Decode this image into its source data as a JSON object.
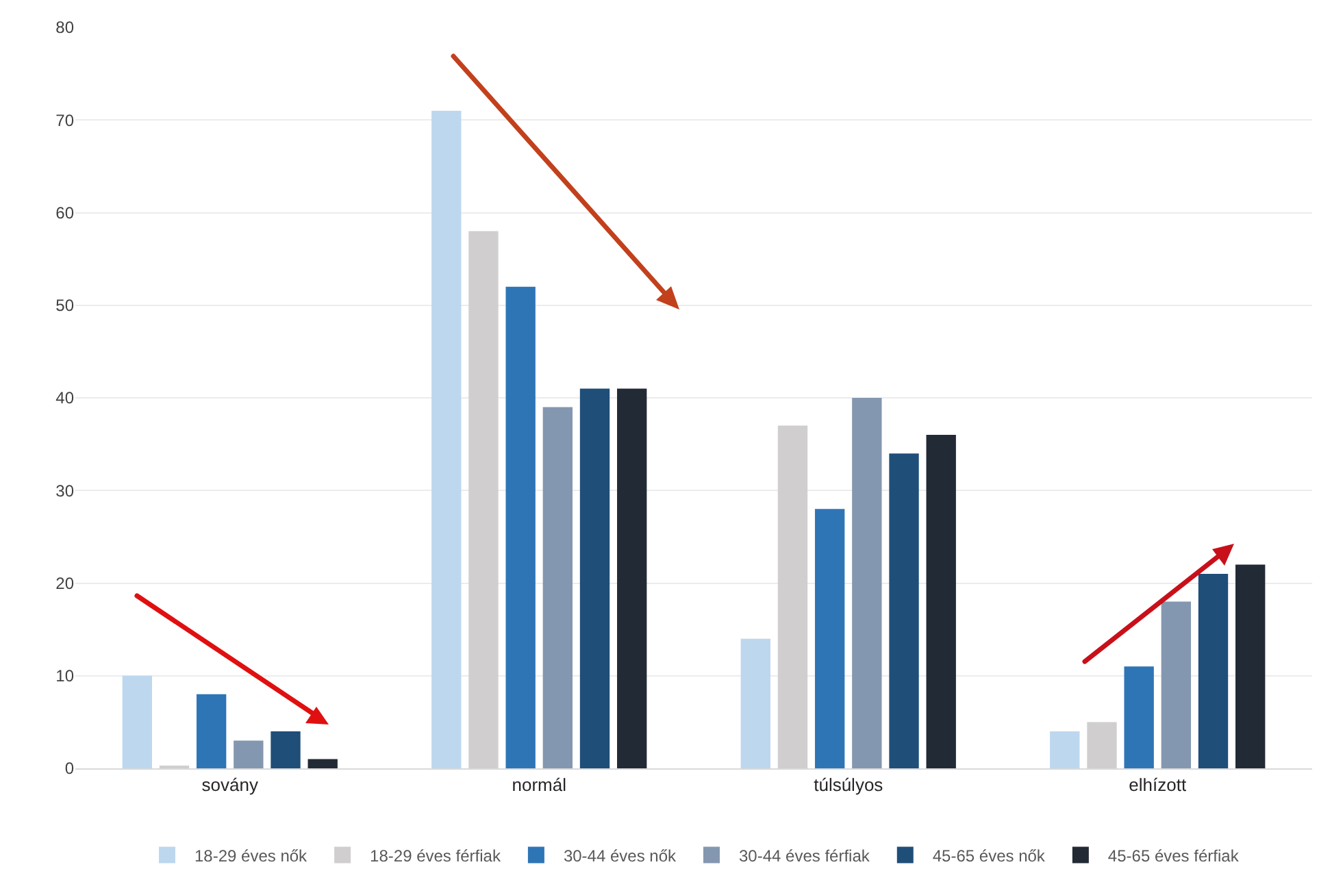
{
  "chart_data": {
    "type": "bar",
    "categories": [
      "sovány",
      "normál",
      "túlsúlyos",
      "elhízott"
    ],
    "series": [
      {
        "name": "18-29 éves nők",
        "color": "#bdd7ee",
        "values": [
          10,
          71,
          14,
          4
        ]
      },
      {
        "name": "18-29 éves férfiak",
        "color": "#d0cece",
        "values": [
          0.3,
          58,
          37,
          5
        ]
      },
      {
        "name": "30-44 éves nők",
        "color": "#2e75b6",
        "values": [
          8,
          52,
          28,
          11
        ]
      },
      {
        "name": "30-44 éves férfiak",
        "color": "#8497b0",
        "values": [
          3,
          39,
          40,
          18
        ]
      },
      {
        "name": "45-65 éves nők",
        "color": "#1f4e79",
        "values": [
          4,
          41,
          34,
          21
        ]
      },
      {
        "name": "45-65 éves férfiak",
        "color": "#222a35",
        "values": [
          1,
          41,
          36,
          22
        ]
      }
    ],
    "ylim": [
      0,
      80
    ],
    "yticks": [
      0,
      10,
      20,
      30,
      40,
      50,
      60,
      70,
      80
    ],
    "grid": "y",
    "legend": "bottom"
  }
}
